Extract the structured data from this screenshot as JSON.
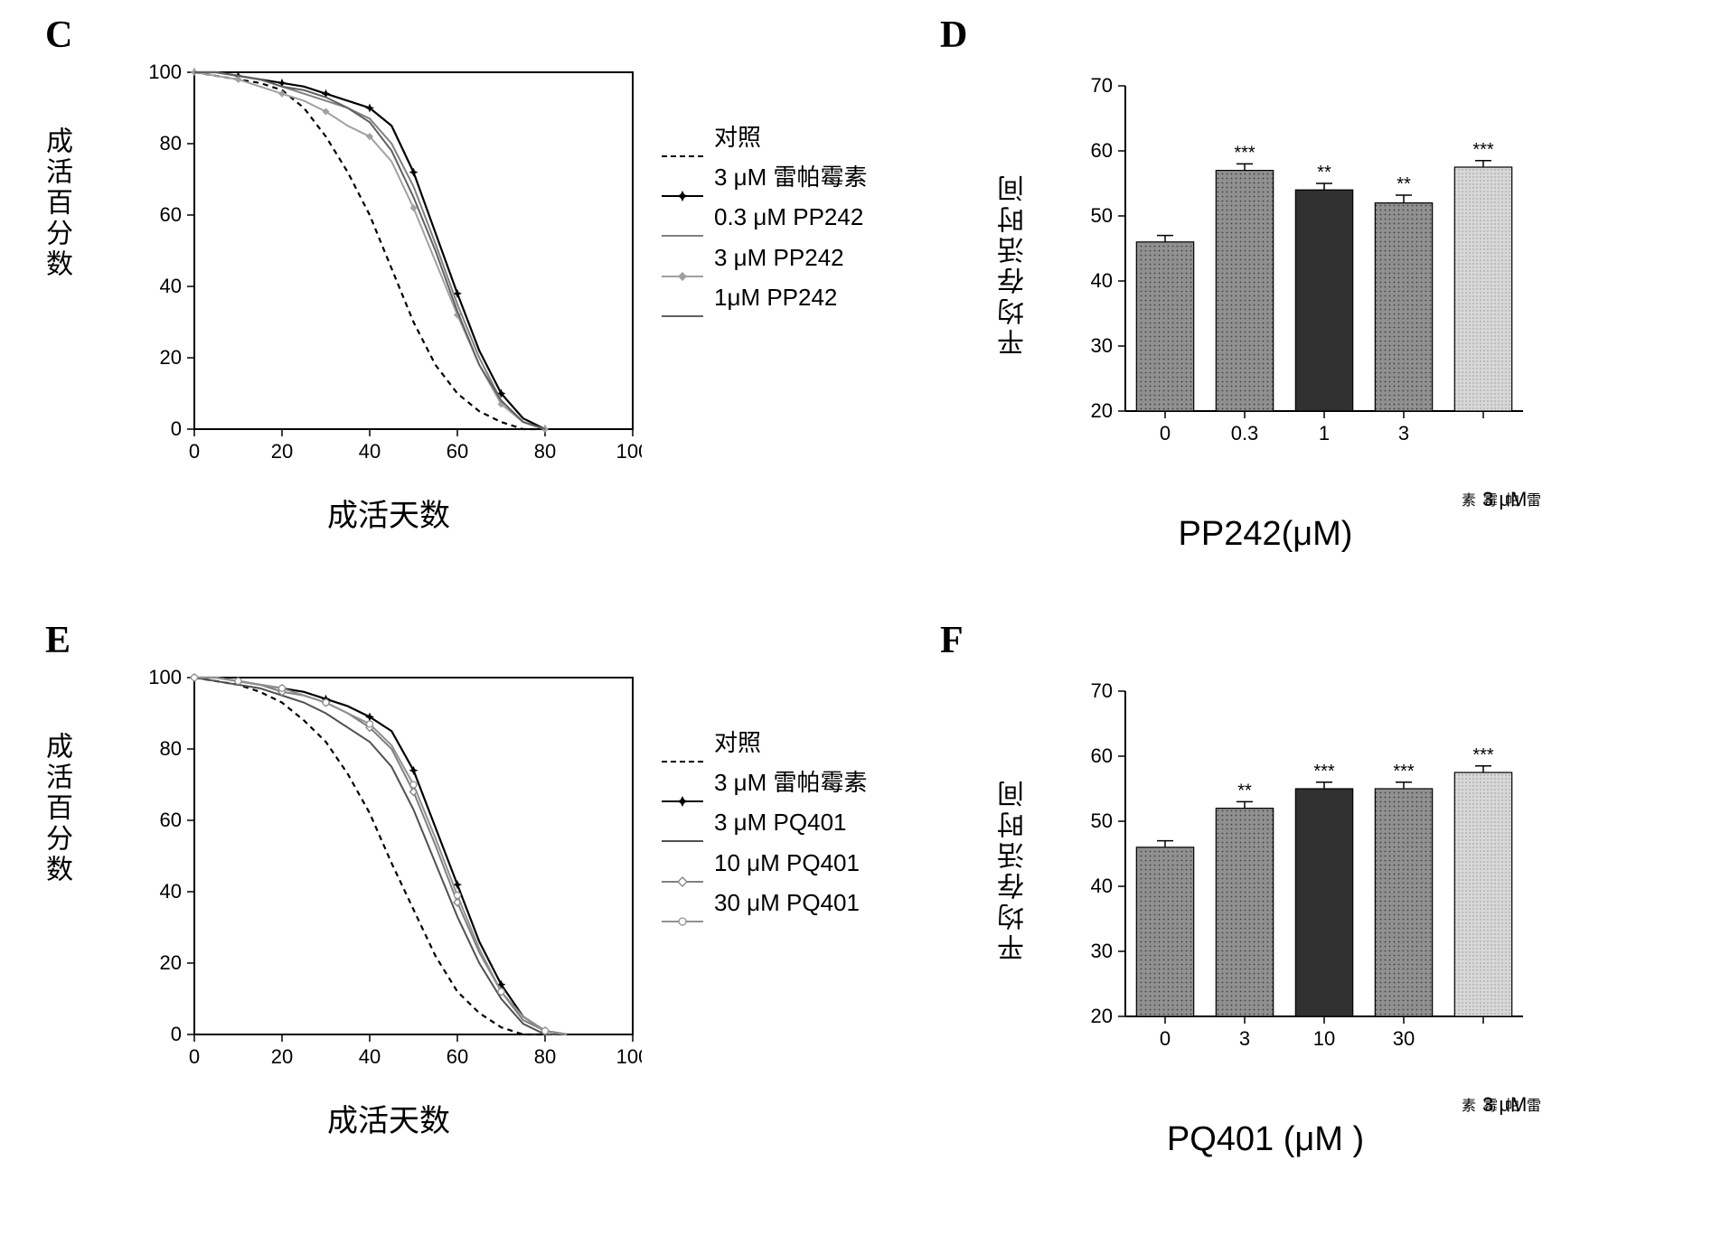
{
  "panels": {
    "C": {
      "label": "C",
      "ylabel": "成活百分数",
      "xlabel": "成活天数",
      "xlim": [
        0,
        100
      ],
      "ylim": [
        0,
        100
      ],
      "xtick_step": 20,
      "ytick_step": 20,
      "tick_fontsize": 22,
      "label_fontsize": 34,
      "background_color": "#ffffff",
      "axis_color": "#000000",
      "legend": [
        {
          "label": "对照",
          "style": "dashed",
          "color": "#000000",
          "marker": "none"
        },
        {
          "label": "3 μM 雷帕霉素",
          "style": "solid",
          "color": "#000000",
          "marker": "star"
        },
        {
          "label": "0.3 μM PP242",
          "style": "solid",
          "color": "#808080",
          "marker": "none"
        },
        {
          "label": "3 μM PP242",
          "style": "solid",
          "color": "#a0a0a0",
          "marker": "diamond"
        },
        {
          "label": "1μM PP242",
          "style": "solid",
          "color": "#606060",
          "marker": "none"
        }
      ],
      "series": [
        {
          "name": "对照",
          "color": "#000000",
          "dash": "6,5",
          "width": 2.2,
          "x": [
            0,
            5,
            10,
            15,
            20,
            25,
            30,
            35,
            40,
            45,
            50,
            55,
            60,
            65,
            70,
            75,
            80
          ],
          "y": [
            100,
            99,
            98,
            97,
            95,
            90,
            82,
            72,
            60,
            45,
            30,
            18,
            10,
            5,
            2,
            0,
            0
          ]
        },
        {
          "name": "3 μM 雷帕霉素",
          "color": "#000000",
          "dash": "none",
          "width": 2.2,
          "marker": "star",
          "x": [
            0,
            5,
            10,
            15,
            20,
            25,
            30,
            35,
            40,
            45,
            50,
            55,
            60,
            65,
            70,
            75,
            80
          ],
          "y": [
            100,
            100,
            99,
            98,
            97,
            96,
            94,
            92,
            90,
            85,
            72,
            55,
            38,
            22,
            10,
            3,
            0
          ]
        },
        {
          "name": "0.3 μM PP242",
          "color": "#808080",
          "dash": "none",
          "width": 2,
          "x": [
            0,
            5,
            10,
            15,
            20,
            25,
            30,
            35,
            40,
            45,
            50,
            55,
            60,
            65,
            70,
            75,
            80
          ],
          "y": [
            100,
            100,
            99,
            98,
            96,
            94,
            92,
            90,
            87,
            80,
            68,
            52,
            35,
            20,
            8,
            2,
            0
          ]
        },
        {
          "name": "3 μM PP242",
          "color": "#a0a0a0",
          "dash": "none",
          "width": 2,
          "marker": "diamond",
          "x": [
            0,
            5,
            10,
            15,
            20,
            25,
            30,
            35,
            40,
            45,
            50,
            55,
            60,
            65,
            70,
            75,
            80
          ],
          "y": [
            100,
            99,
            98,
            96,
            94,
            92,
            89,
            85,
            82,
            75,
            62,
            47,
            32,
            18,
            7,
            2,
            0
          ]
        },
        {
          "name": "1μM PP242",
          "color": "#606060",
          "dash": "none",
          "width": 2,
          "x": [
            0,
            5,
            10,
            15,
            20,
            25,
            30,
            35,
            40,
            45,
            50,
            55,
            60,
            65,
            70,
            75,
            80
          ],
          "y": [
            100,
            100,
            99,
            98,
            96,
            95,
            93,
            90,
            86,
            78,
            65,
            50,
            33,
            18,
            8,
            2,
            0
          ]
        }
      ]
    },
    "D": {
      "label": "D",
      "ylabel": "平均存活时间",
      "xlabel": "PP242(μM)",
      "extra_label": "雷帕霉素",
      "extra_value": "3 μM",
      "ylim": [
        20,
        70
      ],
      "ytick_step": 10,
      "tick_fontsize": 22,
      "label_fontsize": 38,
      "bar_width": 0.72,
      "background_color": "#ffffff",
      "axis_color": "#000000",
      "categories": [
        "0",
        "0.3",
        "1",
        "3",
        ""
      ],
      "values": [
        46,
        57,
        54,
        52,
        57.5
      ],
      "errors": [
        1,
        1,
        1,
        1.2,
        1
      ],
      "sig": [
        "",
        "***",
        "**",
        "**",
        "***"
      ],
      "bar_colors": [
        "#888888",
        "#a0a0a0",
        "#303030",
        "#787878",
        "#c8c8c8"
      ],
      "patterns": [
        "dots",
        "dots",
        "solid",
        "dots",
        "lightdots"
      ]
    },
    "E": {
      "label": "E",
      "ylabel": "成活百分数",
      "xlabel": "成活天数",
      "xlim": [
        0,
        100
      ],
      "ylim": [
        0,
        100
      ],
      "xtick_step": 20,
      "ytick_step": 20,
      "tick_fontsize": 22,
      "label_fontsize": 34,
      "background_color": "#ffffff",
      "axis_color": "#000000",
      "legend": [
        {
          "label": "对照",
          "style": "dashed",
          "color": "#000000",
          "marker": "none"
        },
        {
          "label": "3 μM 雷帕霉素",
          "style": "solid",
          "color": "#000000",
          "marker": "star"
        },
        {
          "label": "3 μM PQ401",
          "style": "solid",
          "color": "#505050",
          "marker": "none"
        },
        {
          "label": "10 μM PQ401",
          "style": "solid",
          "color": "#808080",
          "marker": "diamond-open"
        },
        {
          "label": "30 μM PQ401",
          "style": "solid",
          "color": "#909090",
          "marker": "circle-open"
        }
      ],
      "series": [
        {
          "name": "对照",
          "color": "#000000",
          "dash": "6,5",
          "width": 2.2,
          "x": [
            0,
            5,
            10,
            15,
            20,
            25,
            30,
            35,
            40,
            45,
            50,
            55,
            60,
            65,
            70,
            75,
            80,
            85
          ],
          "y": [
            100,
            99,
            98,
            96,
            93,
            88,
            82,
            73,
            62,
            48,
            35,
            22,
            12,
            6,
            2,
            0,
            0,
            0
          ]
        },
        {
          "name": "3 μM 雷帕霉素",
          "color": "#000000",
          "dash": "none",
          "width": 2.2,
          "marker": "star",
          "x": [
            0,
            5,
            10,
            15,
            20,
            25,
            30,
            35,
            40,
            45,
            50,
            55,
            60,
            65,
            70,
            75,
            80,
            85
          ],
          "y": [
            100,
            100,
            99,
            98,
            97,
            96,
            94,
            92,
            89,
            85,
            74,
            58,
            42,
            26,
            14,
            5,
            1,
            0
          ]
        },
        {
          "name": "3 μM PQ401",
          "color": "#505050",
          "dash": "none",
          "width": 2,
          "x": [
            0,
            5,
            10,
            15,
            20,
            25,
            30,
            35,
            40,
            45,
            50,
            55,
            60,
            65,
            70,
            75,
            80,
            85
          ],
          "y": [
            100,
            99,
            98,
            97,
            95,
            93,
            90,
            86,
            82,
            75,
            63,
            48,
            33,
            20,
            10,
            3,
            0,
            0
          ]
        },
        {
          "name": "10 μM PQ401",
          "color": "#808080",
          "dash": "none",
          "width": 2,
          "marker": "diamond-open",
          "x": [
            0,
            5,
            10,
            15,
            20,
            25,
            30,
            35,
            40,
            45,
            50,
            55,
            60,
            65,
            70,
            75,
            80,
            85
          ],
          "y": [
            100,
            100,
            99,
            98,
            96,
            95,
            93,
            90,
            86,
            80,
            68,
            53,
            37,
            23,
            12,
            4,
            1,
            0
          ]
        },
        {
          "name": "30 μM PQ401",
          "color": "#909090",
          "dash": "none",
          "width": 2,
          "marker": "circle-open",
          "x": [
            0,
            5,
            10,
            15,
            20,
            25,
            30,
            35,
            40,
            45,
            50,
            55,
            60,
            65,
            70,
            75,
            80,
            85
          ],
          "y": [
            100,
            100,
            99,
            98,
            97,
            95,
            93,
            90,
            87,
            81,
            70,
            55,
            39,
            24,
            12,
            5,
            1,
            0
          ]
        }
      ]
    },
    "F": {
      "label": "F",
      "ylabel": "平均存活时间",
      "xlabel": "PQ401 (μM )",
      "extra_label": "雷帕霉素",
      "extra_value": "3 μM",
      "ylim": [
        20,
        70
      ],
      "ytick_step": 10,
      "tick_fontsize": 22,
      "label_fontsize": 38,
      "bar_width": 0.72,
      "background_color": "#ffffff",
      "axis_color": "#000000",
      "categories": [
        "0",
        "3",
        "10",
        "30",
        ""
      ],
      "values": [
        46,
        52,
        55,
        55,
        57.5
      ],
      "errors": [
        1,
        1,
        1,
        1,
        1
      ],
      "sig": [
        "",
        "**",
        "***",
        "***",
        "***"
      ],
      "bar_colors": [
        "#888888",
        "#a0a0a0",
        "#303030",
        "#787878",
        "#c8c8c8"
      ],
      "patterns": [
        "dots",
        "dots",
        "solid",
        "dots",
        "lightdots"
      ]
    }
  }
}
